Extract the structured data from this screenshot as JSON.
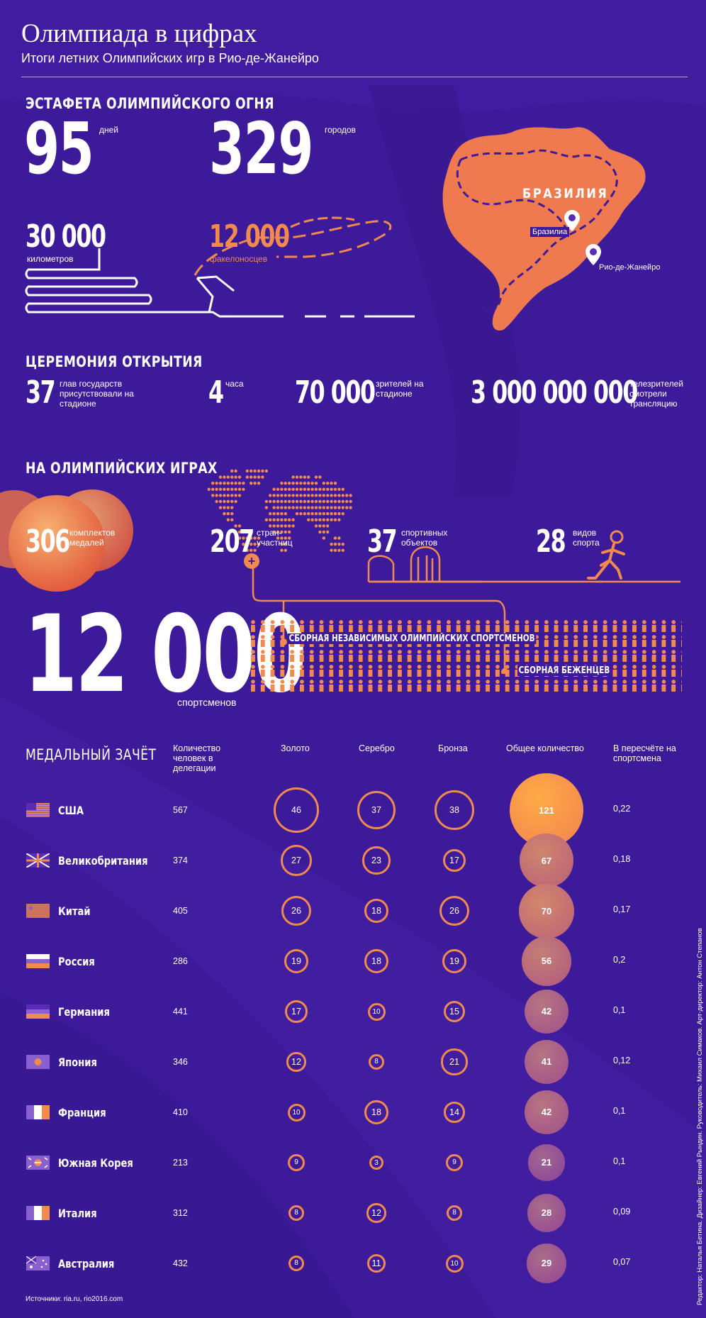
{
  "header": {
    "title": "Олимпиада в цифрах",
    "subtitle": "Итоги летних Олимпийских игр в Рио-де-Жанейро"
  },
  "relay": {
    "heading": "ЭСТАФЕТА ОЛИМПИЙСКОГО ОГНЯ",
    "days_value": "95",
    "days_label": "дней",
    "cities_value": "329",
    "cities_label": "городов",
    "km_value": "30 000",
    "km_label": "километров",
    "torch_value": "12 000",
    "torch_label": "факелоносцев"
  },
  "map": {
    "country": "БРАЗИЛИЯ",
    "pin1": "Бразилиа",
    "pin2": "Рио-де-Жанейро"
  },
  "ceremony": {
    "heading": "ЦЕРЕМОНИЯ ОТКРЫТИЯ",
    "heads_value": "37",
    "heads_label": "глав государств присутствовали на стадионе",
    "hours_value": "4",
    "hours_label": "часа",
    "spectators_value": "70 000",
    "spectators_label": "зрителей на стадионе",
    "tv_value": "3 000 000 000",
    "tv_label": "телезрителей смотрели трансляцию"
  },
  "games": {
    "heading": "НА ОЛИМПИЙСКИХ ИГРАХ",
    "medals_value": "306",
    "medals_label": "комплектов медалей",
    "countries_value": "207",
    "countries_label": "стран-участниц",
    "venues_value": "37",
    "venues_label": "спортивных объектов",
    "sports_value": "28",
    "sports_label": "видов спорта",
    "athletes_value": "12 000",
    "athletes_label": "спортсменов",
    "team1": "СБОРНАЯ НЕЗАВИСИМЫХ ОЛИМПИЙСКИХ СПОРТСМЕНОВ",
    "team2": "СБОРНАЯ БЕЖЕНЦЕВ"
  },
  "medal_table": {
    "heading": "МЕДАЛЬНЫЙ ЗАЧЁТ",
    "columns": [
      "Количество человек в делегации",
      "Золото",
      "Серебро",
      "Бронза",
      "Общее количество",
      "В пересчёте на спортсмена"
    ],
    "rows": [
      {
        "country": "США",
        "delegation": "567",
        "gold": "46",
        "silver": "37",
        "bronze": "38",
        "total": "121",
        "per": "0,22"
      },
      {
        "country": "Великобритания",
        "delegation": "374",
        "gold": "27",
        "silver": "23",
        "bronze": "17",
        "total": "67",
        "per": "0,18"
      },
      {
        "country": "Китай",
        "delegation": "405",
        "gold": "26",
        "silver": "18",
        "bronze": "26",
        "total": "70",
        "per": "0,17"
      },
      {
        "country": "Россия",
        "delegation": "286",
        "gold": "19",
        "silver": "18",
        "bronze": "19",
        "total": "56",
        "per": "0,2"
      },
      {
        "country": "Германия",
        "delegation": "441",
        "gold": "17",
        "silver": "10",
        "bronze": "15",
        "total": "42",
        "per": "0,1"
      },
      {
        "country": "Япония",
        "delegation": "346",
        "gold": "12",
        "silver": "8",
        "bronze": "21",
        "total": "41",
        "per": "0,12"
      },
      {
        "country": "Франция",
        "delegation": "410",
        "gold": "10",
        "silver": "18",
        "bronze": "14",
        "total": "42",
        "per": "0,1"
      },
      {
        "country": "Южная Корея",
        "delegation": "213",
        "gold": "9",
        "silver": "3",
        "bronze": "9",
        "total": "21",
        "per": "0,1"
      },
      {
        "country": "Италия",
        "delegation": "312",
        "gold": "8",
        "silver": "12",
        "bronze": "8",
        "total": "28",
        "per": "0,09"
      },
      {
        "country": "Австралия",
        "delegation": "432",
        "gold": "8",
        "silver": "11",
        "bronze": "10",
        "total": "29",
        "per": "0,07"
      }
    ]
  },
  "footer": {
    "sources": "Источники: ria.ru, rio2016.com",
    "credits": "Редактор: Наталья Бетина. Дизайнер: Евгений Рындин. Руководитель: Михаил Симаков. Арт-директор: Антон Степанов"
  },
  "colors": {
    "background": "#3d1a9a",
    "accent": "#f08a4e"
  }
}
